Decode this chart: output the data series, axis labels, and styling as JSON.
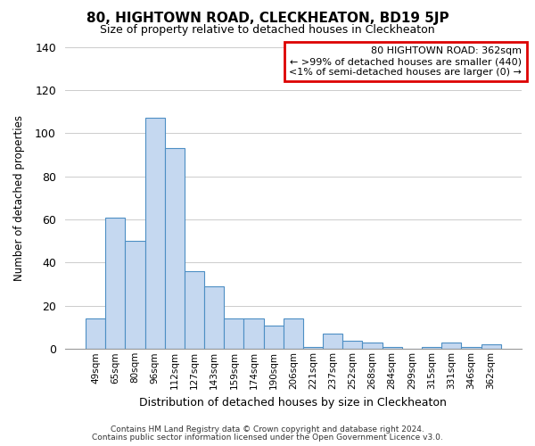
{
  "title": "80, HIGHTOWN ROAD, CLECKHEATON, BD19 5JP",
  "subtitle": "Size of property relative to detached houses in Cleckheaton",
  "xlabel": "Distribution of detached houses by size in Cleckheaton",
  "ylabel": "Number of detached properties",
  "categories": [
    "49sqm",
    "65sqm",
    "80sqm",
    "96sqm",
    "112sqm",
    "127sqm",
    "143sqm",
    "159sqm",
    "174sqm",
    "190sqm",
    "206sqm",
    "221sqm",
    "237sqm",
    "252sqm",
    "268sqm",
    "284sqm",
    "299sqm",
    "315sqm",
    "331sqm",
    "346sqm",
    "362sqm"
  ],
  "values": [
    14,
    61,
    50,
    107,
    93,
    36,
    29,
    14,
    14,
    11,
    14,
    1,
    7,
    4,
    3,
    1,
    0,
    1,
    3,
    1,
    2
  ],
  "bar_color": "#c5d8f0",
  "bar_edge_color": "#4d8fc4",
  "ylim": [
    0,
    140
  ],
  "yticks": [
    0,
    20,
    40,
    60,
    80,
    100,
    120,
    140
  ],
  "grid_color": "#cccccc",
  "background_color": "#ffffff",
  "annotation_text": "80 HIGHTOWN ROAD: 362sqm\n← >99% of detached houses are smaller (440)\n<1% of semi-detached houses are larger (0) →",
  "annotation_box_edge_color": "#dd0000",
  "footer1": "Contains HM Land Registry data © Crown copyright and database right 2024.",
  "footer2": "Contains public sector information licensed under the Open Government Licence v3.0."
}
